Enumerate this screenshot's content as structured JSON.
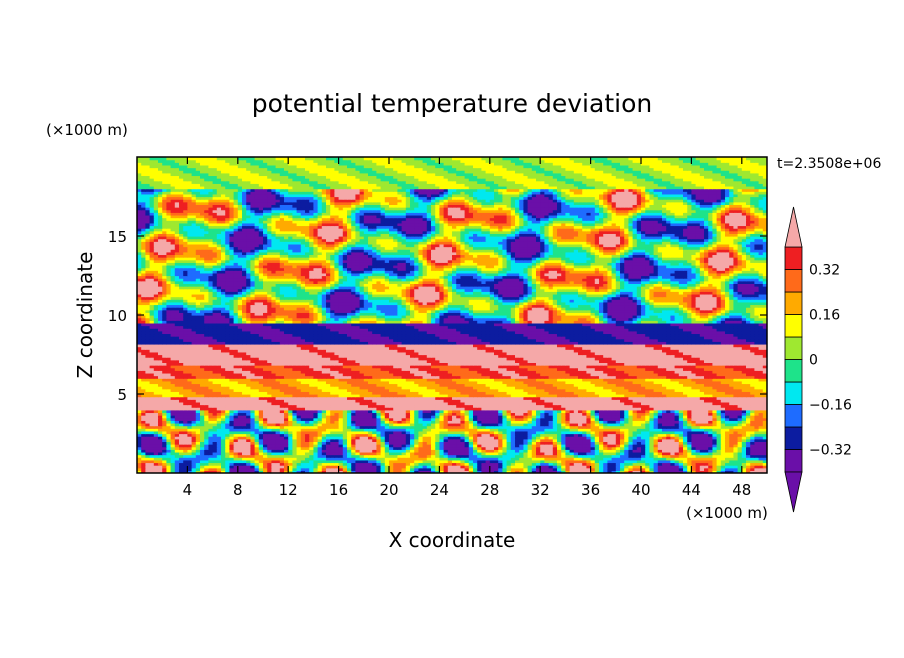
{
  "chart_data": {
    "type": "heatmap",
    "title": "potential temperature deviation",
    "xlabel": "X coordinate",
    "ylabel": "Z coordinate",
    "x_unit": "(×1000 m)",
    "y_unit": "(×1000 m)",
    "time_label": "t=2.3508e+06",
    "xlim": [
      0,
      50
    ],
    "ylim": [
      0,
      20
    ],
    "x_ticks": [
      4,
      8,
      12,
      16,
      20,
      24,
      28,
      32,
      36,
      40,
      44,
      48
    ],
    "x_tick_labels": [
      "4",
      "8",
      "12",
      "16",
      "20",
      "24",
      "28",
      "32",
      "36",
      "40",
      "44",
      "48"
    ],
    "y_ticks": [
      5,
      10,
      15
    ],
    "y_tick_labels": [
      "5",
      "10",
      "15"
    ],
    "colorbar": {
      "levels": [
        -0.4,
        -0.32,
        -0.24,
        -0.16,
        -0.08,
        0,
        0.08,
        0.16,
        0.24,
        0.32,
        0.4
      ],
      "labels": [
        "0.32",
        "0.16",
        "0",
        "−0.16",
        "−0.32"
      ],
      "label_values": [
        0.32,
        0.16,
        0,
        -0.16,
        -0.32
      ],
      "colors": [
        "#6a0fa8",
        "#0c1ca0",
        "#1e6cff",
        "#00e8f0",
        "#1ee38a",
        "#9fe830",
        "#ffff00",
        "#ffaa00",
        "#ff6a1a",
        "#ee1f22",
        "#f5a8a8"
      ],
      "extend": "both"
    },
    "bands": [
      {
        "z": 0.0,
        "z2": 4.0,
        "regime": "turbulent"
      },
      {
        "z": 4.0,
        "z2": 4.8,
        "value": 0.45
      },
      {
        "z": 4.8,
        "z2": 6.0,
        "value": 0.2
      },
      {
        "z": 6.0,
        "z2": 6.8,
        "value": 0.35
      },
      {
        "z": 6.8,
        "z2": 8.2,
        "value": 0.45
      },
      {
        "z": 8.2,
        "z2": 9.5,
        "value": -0.3
      },
      {
        "z": 9.5,
        "z2": 18.0,
        "regime": "wavy"
      },
      {
        "z": 18.0,
        "z2": 20.0,
        "value": 0.05
      }
    ]
  }
}
